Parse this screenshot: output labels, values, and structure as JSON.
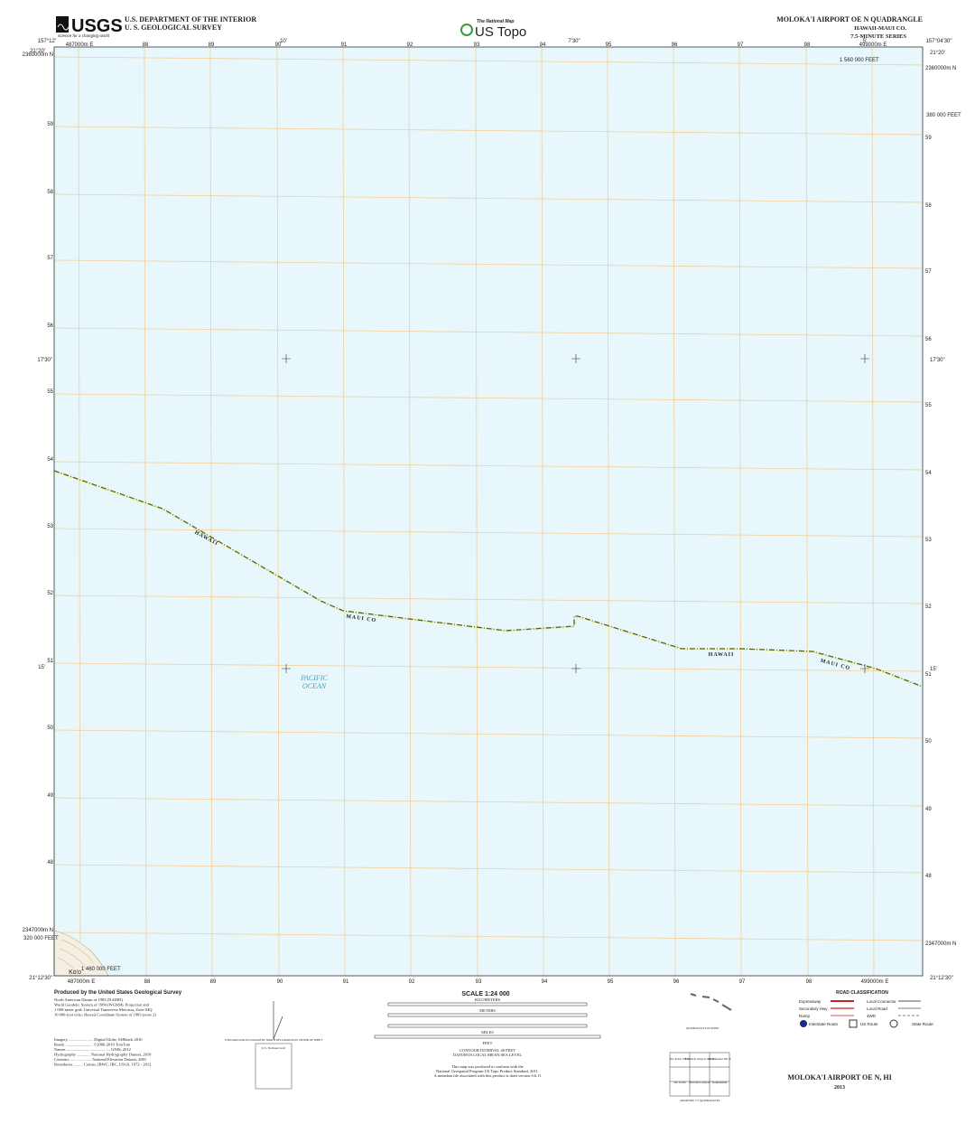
{
  "header": {
    "agency": "USGS",
    "tagline": "science for a changing world",
    "department": "U.S. DEPARTMENT OF THE INTERIOR",
    "survey": "U. S. GEOLOGICAL SURVEY",
    "program": "The National Map",
    "product": "US Topo",
    "title": "MOLOKA'I AIRPORT OE N QUADRANGLE",
    "state": "HAWAII-MAUI CO.",
    "series": "7.5-MINUTE SERIES"
  },
  "edges": {
    "top_left": "157°12'",
    "top_10": "10'",
    "top_730": "7'30\"",
    "top_5": "5'",
    "top_right": "157°04'30\"",
    "lat_top_left": "21°20'",
    "lat_top_right": "21°20'",
    "lat_mid": "17'30\"",
    "lat_mid_r": "17'30\"",
    "lat_15": "15'",
    "lat_15_r": "15'",
    "lat_bottom_left": "21°12'30\"",
    "lat_bottom_right": "21°12'30\"",
    "feet_right": "380 000 FEET",
    "feet_top": "1 560 000 FEET",
    "feet_left": "320 000 FEET",
    "feet_bottom": "1 460 000 FEET"
  },
  "eastings": [
    "487000m E",
    "88",
    "89",
    "90",
    "91",
    "92",
    "93",
    "94",
    "95",
    "96",
    "97",
    "98",
    "499000m E"
  ],
  "northings": [
    "2360000m N",
    "59",
    "58",
    "57",
    "56",
    "55",
    "54",
    "53",
    "52",
    "51",
    "50",
    "49",
    "48",
    "2347000m N"
  ],
  "map_labels": {
    "hawaii_1": "HAWAII",
    "maui_1": "MAUI CO",
    "hawaii_2": "HAWAII",
    "maui_2": "MAUI CO",
    "ocean_1": "PACIFIC",
    "ocean_2": "OCEAN",
    "point": "Ko'o"
  },
  "footer": {
    "produced": "Produced by the United States Geological Survey",
    "datum": [
      "North American Datum of 1983 (NAD83)",
      "World Geodetic System of 1984 (WGS84). Projection and",
      "1 000-meter grid: Universal Transverse Mercator, Zone 04Q",
      "10 000-foot ticks: Hawaii Coordinate System of 1983 (zone 2)"
    ],
    "sources": [
      "Imagery ........................ Digital Globe, 04March 2010",
      "Roads ........................... ©2006-2010 TomTom",
      "Names ........................................... GNIS, 2012",
      "Hydrography ............. National Hydrography Dataset, 2010",
      "Contours ..................... National Elevation Dataset, 2001",
      "Boundaries ......... Census, IBWC, IBC, USGS, 1972 - 2012"
    ],
    "scale": "SCALE 1:24 000",
    "units": [
      "KILOMETERS",
      "METERS",
      "MILES",
      "FEET"
    ],
    "contour": "CONTOUR INTERVAL 40 FEET",
    "mean_sea": "DATUM IS LOCAL MEAN SEA LEVEL",
    "compliance": [
      "This map was produced to conform with the",
      "National Geospatial Program US Topo Product Standard, 2011.",
      "A metadata file associated with this product is draft version 0.6.11"
    ],
    "declination": "UTM GRID AND 2013 MAGNETIC NORTH DECLINATION AT CENTER OF SHEET",
    "grid_zone": "U.S. National Grid",
    "road_title": "ROAD CLASSIFICATION",
    "roads": [
      "Expressway",
      "Local Connector",
      "Secondary Hwy",
      "Local Road",
      "Ramp",
      "4WD"
    ],
    "shields": [
      "Interstate Route",
      "US Route",
      "State Route"
    ],
    "quads": [
      "Ilio Point OE N",
      "Moloka'i Airport OE N",
      "Kaunakakai OE N",
      "Ilio Point",
      "Moloka'i Airport",
      "Kaunakakai"
    ],
    "quad_caption": "ADJOINING 7.5' QUADRANGLES",
    "location": "QUADRANGLE LOCATION",
    "name": "MOLOKA'I AIRPORT OE N, HI",
    "year": "2013"
  }
}
